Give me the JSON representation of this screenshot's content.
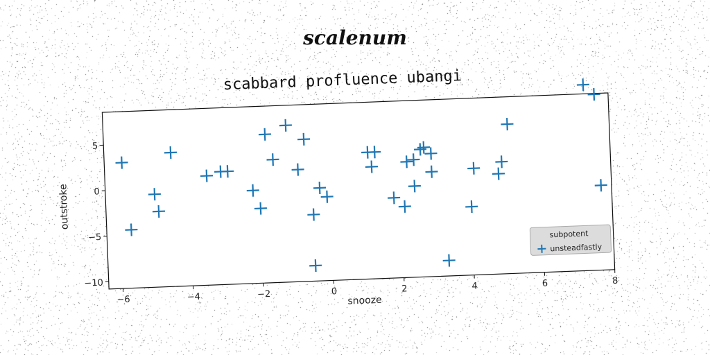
{
  "figure": {
    "suptitle": "scalenum"
  },
  "chart_data": {
    "type": "scatter",
    "title": "scabbard profluence ubangi",
    "xlabel": "snooze",
    "ylabel": "outstroke",
    "xlim": [
      -6.4,
      8.0
    ],
    "ylim": [
      -10.8,
      8.6
    ],
    "xticks": [
      -6,
      -4,
      -2,
      0,
      2,
      4,
      6,
      8
    ],
    "yticks": [
      -10,
      -5,
      0,
      5
    ],
    "grid": false,
    "legend": {
      "placement": "lower-right",
      "entries": [
        "subpotent",
        "unsteadfastly"
      ]
    },
    "marker": "+",
    "color": "#1f77b4",
    "series": [
      {
        "name": "unsteadfastly",
        "x": [
          -5.9,
          -5.7,
          -5.0,
          -4.9,
          -4.5,
          -3.5,
          -3.1,
          -2.9,
          -2.2,
          -2.0,
          -1.8,
          -1.6,
          -1.2,
          -0.9,
          -0.7,
          -0.5,
          -0.5,
          -0.3,
          -0.1,
          1.1,
          1.3,
          1.2,
          1.8,
          2.1,
          2.2,
          2.4,
          2.4,
          2.6,
          2.7,
          2.9,
          2.9,
          3.3,
          4.0,
          4.1,
          4.8,
          4.9,
          5.1,
          7.3,
          7.6,
          7.7
        ],
        "y": [
          3.0,
          -4.4,
          -0.6,
          -2.5,
          3.9,
          1.2,
          1.6,
          1.6,
          -0.6,
          -2.6,
          5.5,
          2.7,
          6.4,
          1.5,
          4.8,
          -3.5,
          -9.1,
          -0.6,
          -1.6,
          3.1,
          3.1,
          1.5,
          -2.0,
          -3.0,
          1.9,
          2.1,
          -0.8,
          3.2,
          3.4,
          2.7,
          0.7,
          -9.1,
          -3.3,
          0.9,
          0.2,
          1.5,
          5.6,
          9.6,
          8.5,
          -1.5
        ]
      }
    ]
  }
}
